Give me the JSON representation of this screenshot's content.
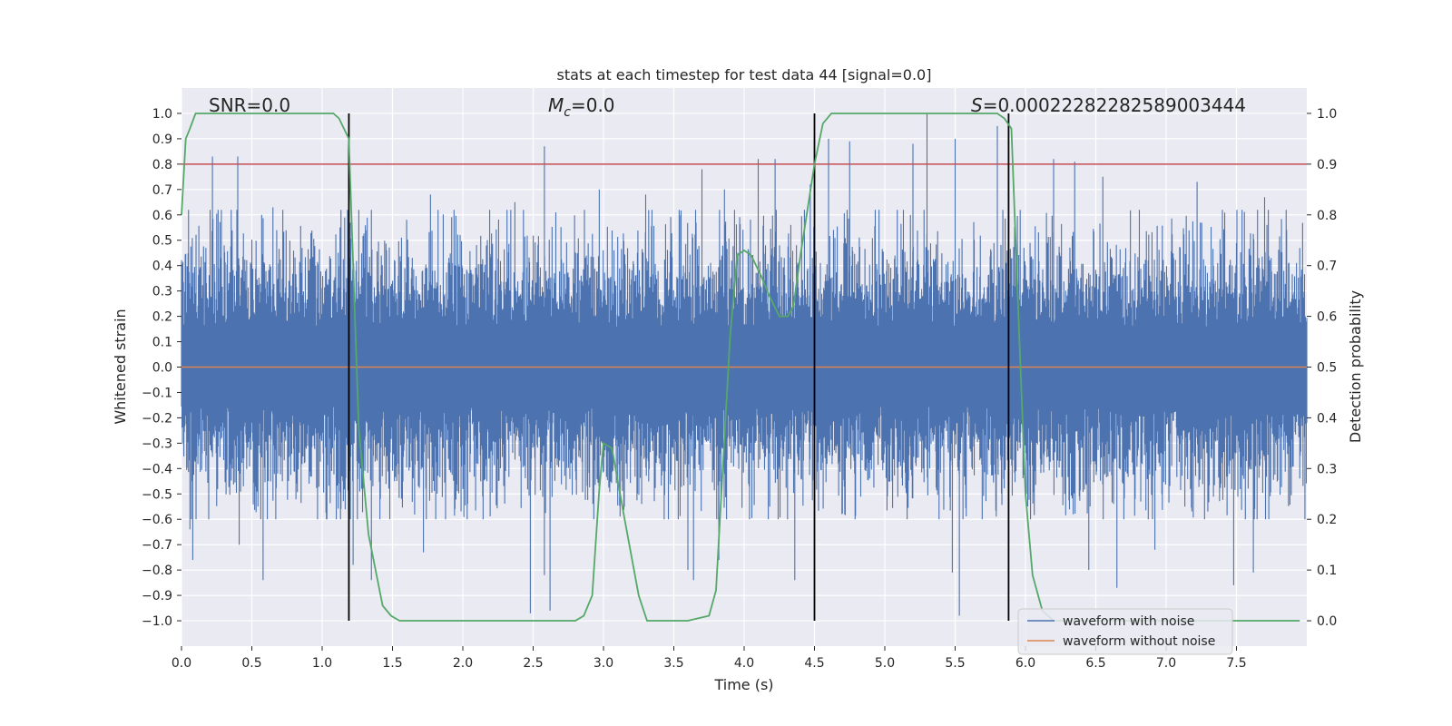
{
  "chart_data": {
    "type": "line",
    "title": "stats at each timestep for test data 44 [signal=0.0]",
    "xlabel": "Time (s)",
    "ylabel": "Whitened strain",
    "y2label": "Detection probability",
    "xlim": [
      0.0,
      8.0
    ],
    "ylim": [
      -1.1,
      1.1
    ],
    "y2lim": [
      -0.05,
      1.05
    ],
    "xticks": [
      0.0,
      0.5,
      1.0,
      1.5,
      2.0,
      2.5,
      3.0,
      3.5,
      4.0,
      4.5,
      5.0,
      5.5,
      6.0,
      6.5,
      7.0,
      7.5
    ],
    "xtick_labels": [
      "0.0",
      "0.5",
      "1.0",
      "1.5",
      "2.0",
      "2.5",
      "3.0",
      "3.5",
      "4.0",
      "4.5",
      "5.0",
      "5.5",
      "6.0",
      "6.5",
      "7.0",
      "7.5"
    ],
    "yticks": [
      -1.0,
      -0.9,
      -0.8,
      -0.7,
      -0.6,
      -0.5,
      -0.4,
      -0.3,
      -0.2,
      -0.1,
      0.0,
      0.1,
      0.2,
      0.3,
      0.4,
      0.5,
      0.6,
      0.7,
      0.8,
      0.9,
      1.0
    ],
    "ytick_labels": [
      "−1.0",
      "−0.9",
      "−0.8",
      "−0.7",
      "−0.6",
      "−0.5",
      "−0.4",
      "−0.3",
      "−0.2",
      "−0.1",
      "0.0",
      "0.1",
      "0.2",
      "0.3",
      "0.4",
      "0.5",
      "0.6",
      "0.7",
      "0.8",
      "0.9",
      "1.0"
    ],
    "y2ticks": [
      0.0,
      0.1,
      0.2,
      0.3,
      0.4,
      0.5,
      0.6,
      0.7,
      0.8,
      0.9,
      1.0
    ],
    "y2tick_labels": [
      "0.0",
      "0.1",
      "0.2",
      "0.3",
      "0.4",
      "0.5",
      "0.6",
      "0.7",
      "0.8",
      "0.9",
      "1.0"
    ],
    "grid": true,
    "colors": {
      "background": "#eaeaf2",
      "grid": "#ffffff",
      "noise": "#4c72b0",
      "clean": "#dd8452",
      "prob": "#55a868",
      "threshold": "#c44e52",
      "marker": "#000000"
    },
    "series": [
      {
        "name": "waveform with noise",
        "axis": "left",
        "kind": "noise",
        "description_range": [
          -0.99,
          1.0
        ],
        "peaks_top": [
          [
            0.05,
            0.62
          ],
          [
            0.22,
            0.83
          ],
          [
            0.4,
            0.83
          ],
          [
            0.57,
            0.6
          ],
          [
            0.65,
            0.63
          ],
          [
            1.16,
            0.59
          ],
          [
            1.35,
            0.62
          ],
          [
            1.77,
            0.68
          ],
          [
            2.37,
            0.65
          ],
          [
            2.58,
            0.87
          ],
          [
            2.97,
            0.7
          ],
          [
            3.3,
            0.68
          ],
          [
            3.7,
            0.78
          ],
          [
            3.86,
            0.7
          ],
          [
            4.1,
            0.82
          ],
          [
            4.22,
            0.82
          ],
          [
            4.47,
            0.72
          ],
          [
            4.6,
            0.9
          ],
          [
            4.75,
            0.89
          ],
          [
            5.2,
            0.88
          ],
          [
            5.3,
            1.0
          ],
          [
            5.5,
            0.9
          ],
          [
            5.8,
            0.95
          ],
          [
            6.2,
            0.82
          ],
          [
            6.35,
            0.81
          ],
          [
            6.55,
            0.75
          ],
          [
            7.22,
            0.73
          ],
          [
            7.4,
            0.62
          ],
          [
            7.7,
            0.67
          ]
        ],
        "peaks_bottom": [
          [
            0.06,
            -0.64
          ],
          [
            0.08,
            -0.76
          ],
          [
            0.41,
            -0.7
          ],
          [
            0.58,
            -0.84
          ],
          [
            1.22,
            -0.78
          ],
          [
            1.35,
            -0.84
          ],
          [
            1.72,
            -0.73
          ],
          [
            2.48,
            -0.97
          ],
          [
            2.58,
            -0.82
          ],
          [
            2.62,
            -0.96
          ],
          [
            3.6,
            -0.8
          ],
          [
            3.64,
            -0.84
          ],
          [
            3.82,
            -0.76
          ],
          [
            4.36,
            -0.84
          ],
          [
            5.53,
            -0.98
          ],
          [
            5.48,
            -0.81
          ],
          [
            6.45,
            -0.8
          ],
          [
            6.65,
            -0.87
          ],
          [
            6.92,
            -0.72
          ],
          [
            7.48,
            -0.86
          ],
          [
            7.62,
            -0.81
          ]
        ]
      },
      {
        "name": "waveform without noise",
        "axis": "left",
        "kind": "line",
        "x": [
          0.0,
          8.0
        ],
        "y": [
          0.0,
          0.0
        ]
      },
      {
        "name": "detection probability",
        "axis": "right",
        "kind": "line",
        "x": [
          0.0,
          0.03,
          0.06,
          0.1,
          0.2,
          0.4,
          0.6,
          0.8,
          1.0,
          1.08,
          1.12,
          1.19,
          1.26,
          1.33,
          1.43,
          1.49,
          1.55,
          1.7,
          2.0,
          2.5,
          2.8,
          2.86,
          2.92,
          2.97,
          3.0,
          3.06,
          3.15,
          3.25,
          3.31,
          3.36,
          3.45,
          3.6,
          3.75,
          3.8,
          3.9,
          3.95,
          4.0,
          4.05,
          4.12,
          4.18,
          4.25,
          4.31,
          4.35,
          4.4,
          4.5,
          4.56,
          4.62,
          4.8,
          5.5,
          5.8,
          5.85,
          5.9,
          5.95,
          6.0,
          6.05,
          6.12,
          6.2,
          6.5,
          7.0,
          7.5,
          7.95
        ],
        "y": [
          0.8,
          0.95,
          0.97,
          1.0,
          1.0,
          1.0,
          1.0,
          1.0,
          1.0,
          1.0,
          0.99,
          0.95,
          0.38,
          0.17,
          0.03,
          0.01,
          0.0,
          0.0,
          0.0,
          0.0,
          0.0,
          0.01,
          0.05,
          0.26,
          0.35,
          0.34,
          0.2,
          0.05,
          0.0,
          0.0,
          0.0,
          0.0,
          0.01,
          0.06,
          0.56,
          0.72,
          0.73,
          0.72,
          0.68,
          0.64,
          0.6,
          0.6,
          0.62,
          0.72,
          0.9,
          0.98,
          1.0,
          1.0,
          1.0,
          1.0,
          0.99,
          0.97,
          0.6,
          0.25,
          0.09,
          0.02,
          0.0,
          0.0,
          0.0,
          0.0,
          0.0
        ]
      }
    ],
    "threshold": {
      "axis": "left",
      "y": 0.8
    },
    "vlines": [
      {
        "x": 1.19,
        "ymin": -1.0,
        "ymax": 1.0
      },
      {
        "x": 4.5,
        "ymin": -1.0,
        "ymax": 1.0
      },
      {
        "x": 5.88,
        "ymin": -1.0,
        "ymax": 1.0
      }
    ],
    "annotations": {
      "snr": "SNR=0.0",
      "mc_symbol": "M",
      "mc_sub": "c",
      "mc_value": "=0.0",
      "s_symbol": "S",
      "s_value": "=0.00022282282589003444"
    },
    "legend": {
      "position": "lower-right",
      "entries": [
        "waveform with noise",
        "waveform without noise"
      ]
    }
  }
}
